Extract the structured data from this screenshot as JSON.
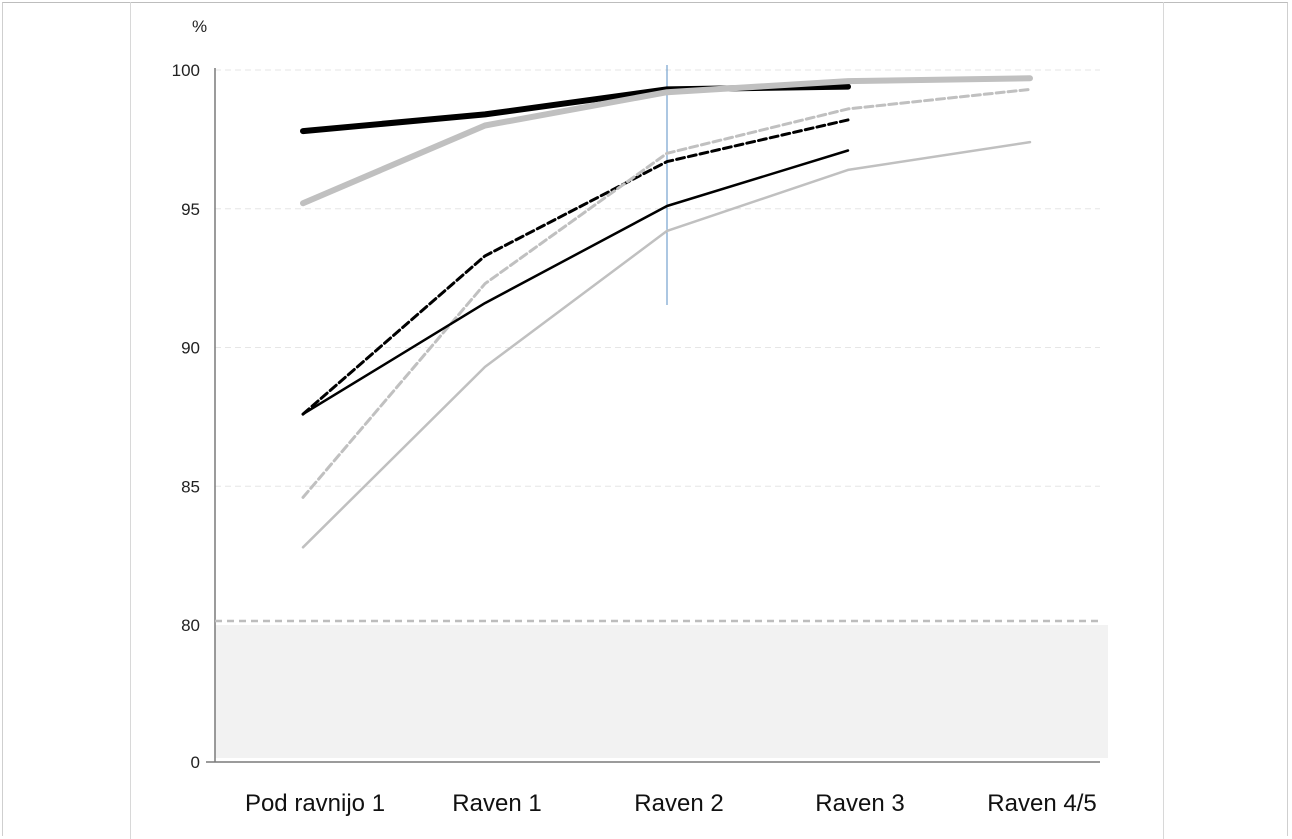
{
  "chart_data": {
    "type": "line",
    "y_unit_label": "%",
    "categories": [
      "Pod ravnijo 1",
      "Raven 1",
      "Raven 2",
      "Raven 3",
      "Raven 4/5"
    ],
    "y_ticks": [
      "100",
      "95",
      "90",
      "85",
      "80",
      "0"
    ],
    "axis_break": "between 0 and 80 (shaded band)",
    "ylim": [
      80,
      100
    ],
    "reference_line": {
      "y": 80.1,
      "style": "dashed",
      "color": "#bdbdbd"
    },
    "grid": true,
    "series": [
      {
        "color": "#000000",
        "style": "solid-thick",
        "values": [
          97.8,
          98.4,
          99.3,
          99.4,
          null
        ]
      },
      {
        "color": "#c0c0c0",
        "style": "solid-thick",
        "values": [
          95.2,
          98.0,
          99.2,
          99.6,
          99.7
        ]
      },
      {
        "color": "#000000",
        "style": "dashed",
        "values": [
          87.6,
          93.3,
          96.7,
          98.2,
          null
        ]
      },
      {
        "color": "#c0c0c0",
        "style": "dashed",
        "values": [
          84.6,
          92.3,
          97.0,
          98.6,
          99.3
        ]
      },
      {
        "color": "#000000",
        "style": "solid-thin",
        "values": [
          87.6,
          91.6,
          95.1,
          97.1,
          null
        ]
      },
      {
        "color": "#c0c0c0",
        "style": "solid-thin",
        "values": [
          82.8,
          89.3,
          94.2,
          96.4,
          97.4
        ]
      }
    ]
  }
}
